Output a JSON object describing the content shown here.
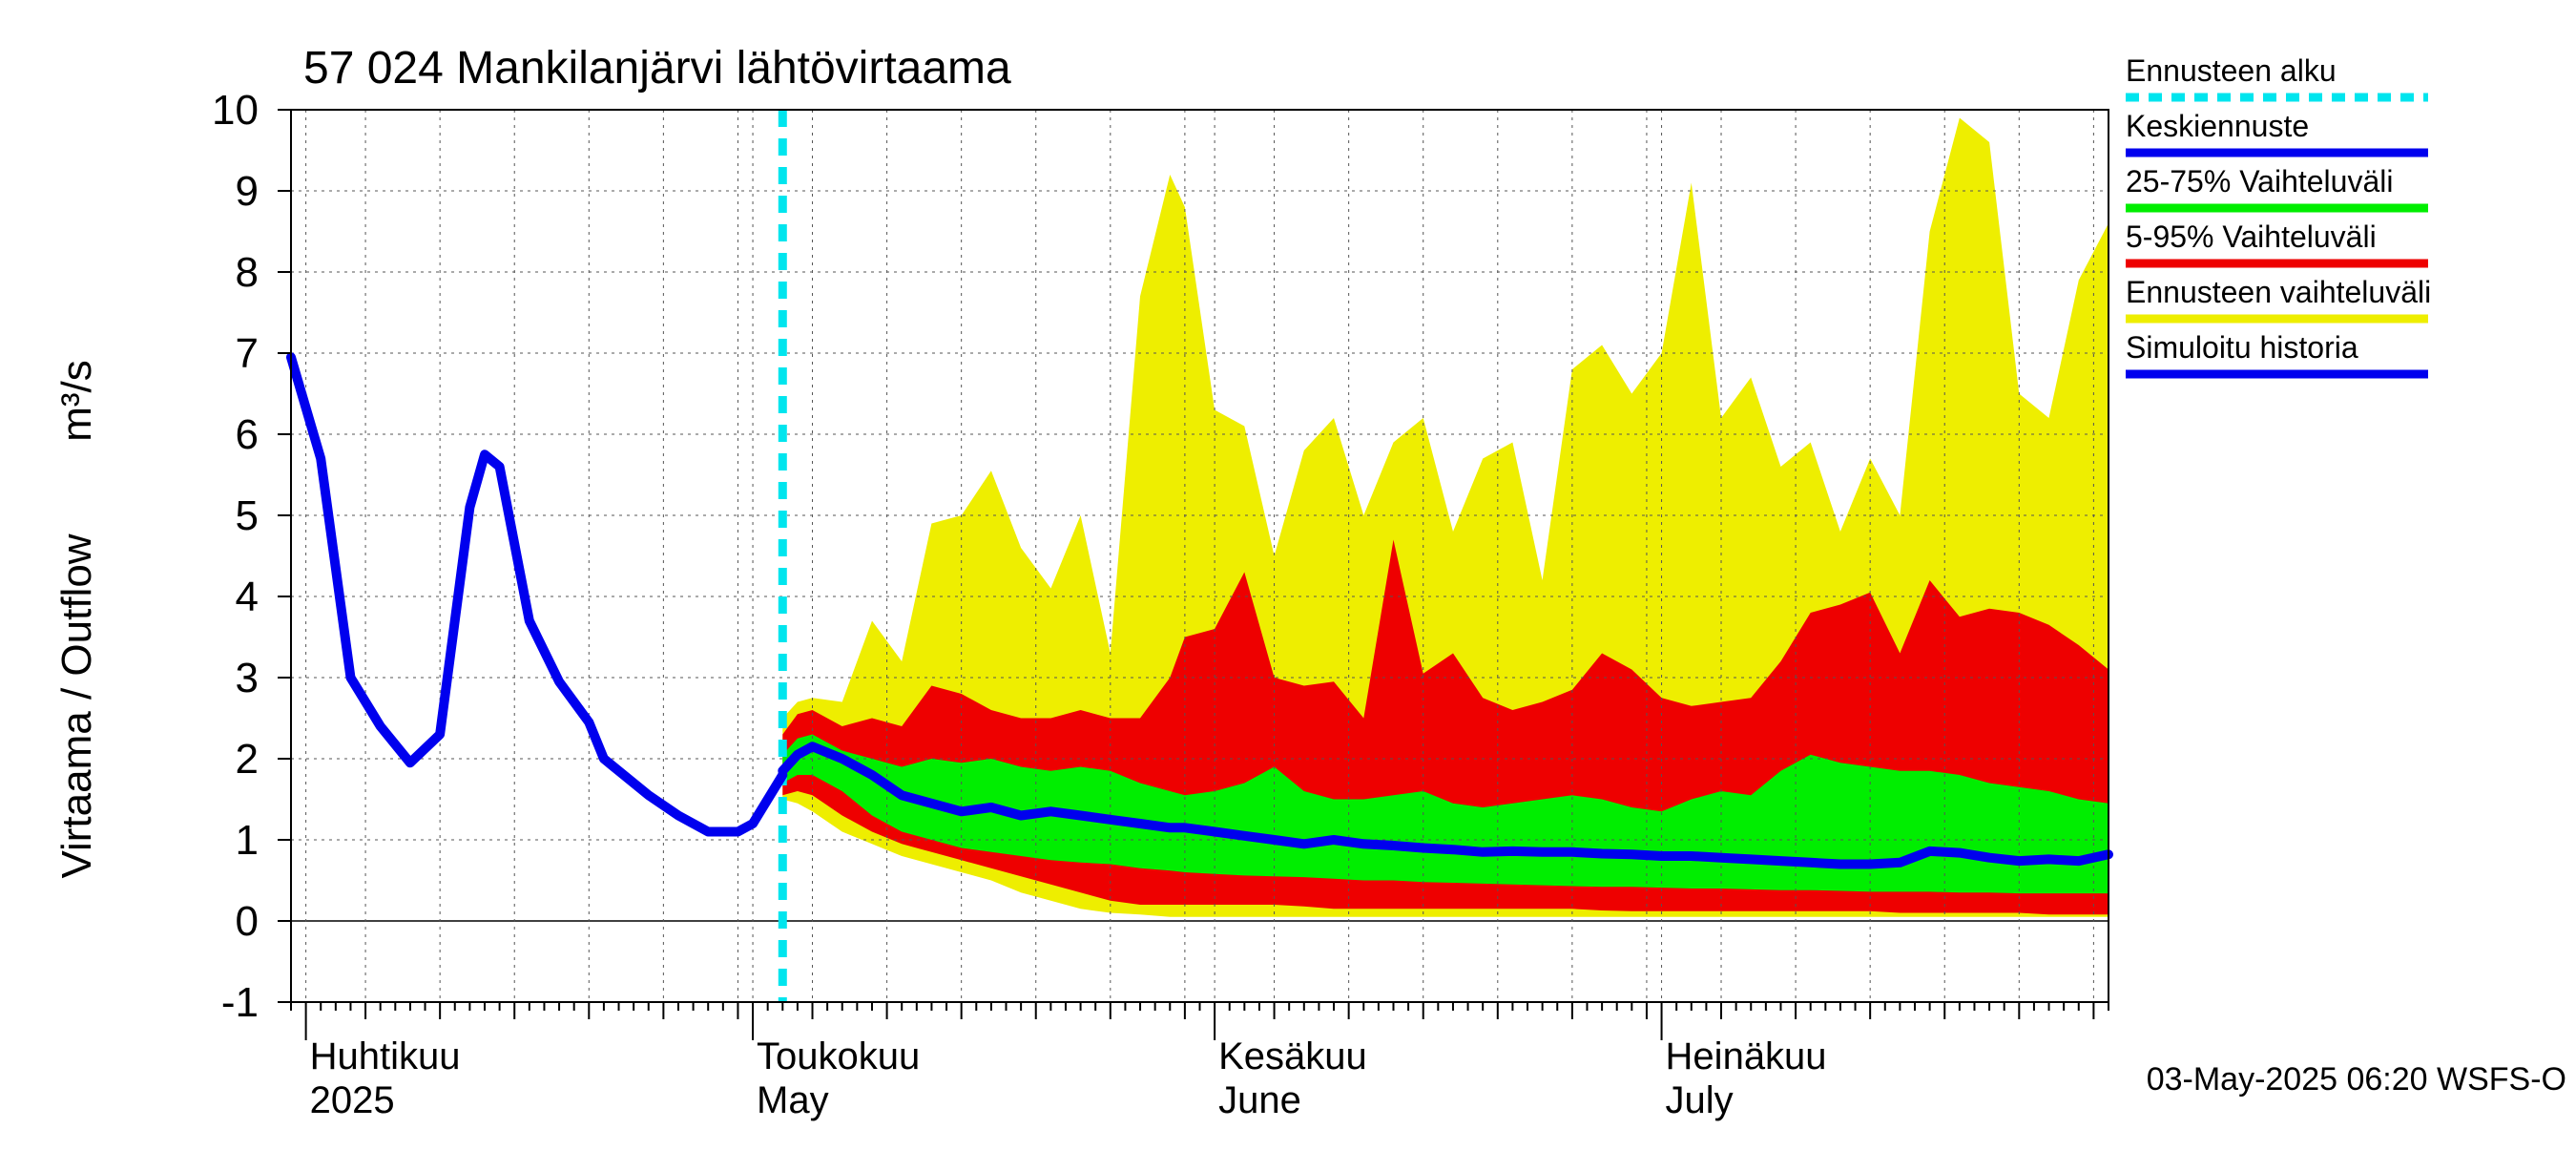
{
  "chart_data": {
    "type": "area",
    "title": "57 024 Mankilanjärvi lähtövirtaama",
    "ylabel": "Virtaama / Outflow",
    "yunit": "m³/s",
    "ylim": [
      -1,
      10
    ],
    "yticks": [
      "-1",
      "0",
      "1",
      "2",
      "3",
      "4",
      "5",
      "6",
      "7",
      "8",
      "9",
      "10"
    ],
    "xlim": [
      "2025-03-31",
      "2025-07-31"
    ],
    "grid": true,
    "legend_position": "right",
    "months": [
      {
        "date": "2025-04-01",
        "fi": "Huhtikuu",
        "en": "2025"
      },
      {
        "date": "2025-05-01",
        "fi": "Toukokuu",
        "en": "May"
      },
      {
        "date": "2025-06-01",
        "fi": "Kesäkuu",
        "en": "June"
      },
      {
        "date": "2025-07-01",
        "fi": "Heinäkuu",
        "en": "July"
      }
    ],
    "forecast_start": "2025-05-03",
    "footer": "03-May-2025 06:20 WSFS-O",
    "colors": {
      "forecast_start": "#00e5ee",
      "median": "#0000ee",
      "band_25_75": "#00ee00",
      "band_5_95": "#ee0000",
      "band_full": "#eeee00",
      "history": "#0000ee"
    },
    "legend": [
      {
        "key": "forecast_start",
        "label": "Ennusteen alku",
        "style": "dash"
      },
      {
        "key": "median",
        "label": "Keskiennuste",
        "style": "line"
      },
      {
        "key": "band_25_75",
        "label": "25-75% Vaihteluväli",
        "style": "line"
      },
      {
        "key": "band_5_95",
        "label": "5-95% Vaihteluväli",
        "style": "line"
      },
      {
        "key": "band_full",
        "label": "Ennusteen vaihteluväli",
        "style": "line"
      },
      {
        "key": "history",
        "label": "Simuloitu historia",
        "style": "line"
      }
    ],
    "history": {
      "x": [
        "2025-03-31",
        "2025-04-02",
        "2025-04-04",
        "2025-04-06",
        "2025-04-08",
        "2025-04-10",
        "2025-04-12",
        "2025-04-13",
        "2025-04-14",
        "2025-04-16",
        "2025-04-18",
        "2025-04-20",
        "2025-04-21",
        "2025-04-22",
        "2025-04-24",
        "2025-04-26",
        "2025-04-28",
        "2025-04-30",
        "2025-05-01",
        "2025-05-02",
        "2025-05-03"
      ],
      "y": [
        6.95,
        5.7,
        3.0,
        2.4,
        1.95,
        2.3,
        5.1,
        5.75,
        5.6,
        3.7,
        2.95,
        2.45,
        2.0,
        1.85,
        1.55,
        1.3,
        1.1,
        1.1,
        1.2,
        1.5,
        1.8
      ]
    },
    "forecast": {
      "x": [
        "2025-05-03",
        "2025-05-04",
        "2025-05-05",
        "2025-05-07",
        "2025-05-09",
        "2025-05-11",
        "2025-05-13",
        "2025-05-15",
        "2025-05-17",
        "2025-05-19",
        "2025-05-21",
        "2025-05-23",
        "2025-05-25",
        "2025-05-27",
        "2025-05-29",
        "2025-05-30",
        "2025-06-01",
        "2025-06-03",
        "2025-06-05",
        "2025-06-07",
        "2025-06-09",
        "2025-06-11",
        "2025-06-13",
        "2025-06-15",
        "2025-06-17",
        "2025-06-19",
        "2025-06-21",
        "2025-06-23",
        "2025-06-25",
        "2025-06-27",
        "2025-06-29",
        "2025-07-01",
        "2025-07-03",
        "2025-07-05",
        "2025-07-07",
        "2025-07-09",
        "2025-07-11",
        "2025-07-13",
        "2025-07-15",
        "2025-07-17",
        "2025-07-19",
        "2025-07-21",
        "2025-07-23",
        "2025-07-25",
        "2025-07-27",
        "2025-07-29",
        "2025-07-31"
      ],
      "median": [
        1.85,
        2.05,
        2.15,
        2.0,
        1.8,
        1.55,
        1.45,
        1.35,
        1.4,
        1.3,
        1.35,
        1.3,
        1.25,
        1.2,
        1.15,
        1.15,
        1.1,
        1.05,
        1.0,
        0.95,
        1.0,
        0.95,
        0.93,
        0.9,
        0.88,
        0.85,
        0.86,
        0.85,
        0.85,
        0.83,
        0.82,
        0.8,
        0.8,
        0.78,
        0.76,
        0.74,
        0.72,
        0.7,
        0.7,
        0.72,
        0.86,
        0.84,
        0.78,
        0.74,
        0.76,
        0.74,
        0.82
      ],
      "p25": [
        1.7,
        1.8,
        1.8,
        1.6,
        1.3,
        1.1,
        1.0,
        0.9,
        0.85,
        0.8,
        0.75,
        0.72,
        0.7,
        0.65,
        0.62,
        0.6,
        0.58,
        0.56,
        0.55,
        0.54,
        0.52,
        0.5,
        0.5,
        0.48,
        0.47,
        0.46,
        0.45,
        0.44,
        0.43,
        0.42,
        0.42,
        0.41,
        0.4,
        0.4,
        0.39,
        0.38,
        0.38,
        0.37,
        0.36,
        0.36,
        0.36,
        0.35,
        0.35,
        0.34,
        0.34,
        0.34,
        0.34
      ],
      "p75": [
        2.05,
        2.25,
        2.3,
        2.1,
        2.0,
        1.9,
        2.0,
        1.95,
        2.0,
        1.9,
        1.85,
        1.9,
        1.85,
        1.7,
        1.6,
        1.55,
        1.6,
        1.7,
        1.9,
        1.6,
        1.5,
        1.5,
        1.55,
        1.6,
        1.45,
        1.4,
        1.45,
        1.5,
        1.55,
        1.5,
        1.4,
        1.35,
        1.5,
        1.6,
        1.55,
        1.85,
        2.05,
        1.95,
        1.9,
        1.85,
        1.85,
        1.8,
        1.7,
        1.65,
        1.6,
        1.5,
        1.45
      ],
      "p5": [
        1.55,
        1.6,
        1.55,
        1.3,
        1.1,
        0.95,
        0.85,
        0.75,
        0.65,
        0.55,
        0.45,
        0.35,
        0.25,
        0.2,
        0.2,
        0.2,
        0.2,
        0.2,
        0.2,
        0.18,
        0.15,
        0.15,
        0.15,
        0.15,
        0.15,
        0.15,
        0.15,
        0.15,
        0.15,
        0.13,
        0.12,
        0.12,
        0.12,
        0.12,
        0.12,
        0.12,
        0.12,
        0.12,
        0.12,
        0.1,
        0.1,
        0.1,
        0.1,
        0.1,
        0.08,
        0.08,
        0.08
      ],
      "p95": [
        2.3,
        2.55,
        2.6,
        2.4,
        2.5,
        2.4,
        2.9,
        2.8,
        2.6,
        2.5,
        2.5,
        2.6,
        2.5,
        2.5,
        3.0,
        3.5,
        3.6,
        4.3,
        3.0,
        2.9,
        2.95,
        2.5,
        4.7,
        3.05,
        3.3,
        2.75,
        2.6,
        2.7,
        2.85,
        3.3,
        3.1,
        2.75,
        2.65,
        2.7,
        2.75,
        3.2,
        3.8,
        3.9,
        4.05,
        3.3,
        4.2,
        3.75,
        3.85,
        3.8,
        3.65,
        3.4,
        3.1
      ],
      "min": [
        1.5,
        1.45,
        1.35,
        1.1,
        0.95,
        0.8,
        0.7,
        0.6,
        0.5,
        0.35,
        0.25,
        0.15,
        0.1,
        0.08,
        0.05,
        0.05,
        0.05,
        0.05,
        0.05,
        0.05,
        0.05,
        0.05,
        0.05,
        0.05,
        0.05,
        0.05,
        0.05,
        0.05,
        0.05,
        0.05,
        0.05,
        0.05,
        0.05,
        0.05,
        0.05,
        0.05,
        0.05,
        0.05,
        0.05,
        0.05,
        0.05,
        0.05,
        0.05,
        0.05,
        0.05,
        0.05,
        0.05
      ],
      "max": [
        2.5,
        2.7,
        2.75,
        2.7,
        3.7,
        3.2,
        4.9,
        5.0,
        5.55,
        4.6,
        4.1,
        5.0,
        3.3,
        7.7,
        9.2,
        8.8,
        6.3,
        6.1,
        4.5,
        5.8,
        6.2,
        5.0,
        5.9,
        6.2,
        4.8,
        5.7,
        5.9,
        4.2,
        6.8,
        7.1,
        6.5,
        7.0,
        9.1,
        6.2,
        6.7,
        5.6,
        5.9,
        4.8,
        5.7,
        5.0,
        8.5,
        9.9,
        9.6,
        6.5,
        6.2,
        7.9,
        8.6
      ]
    }
  }
}
